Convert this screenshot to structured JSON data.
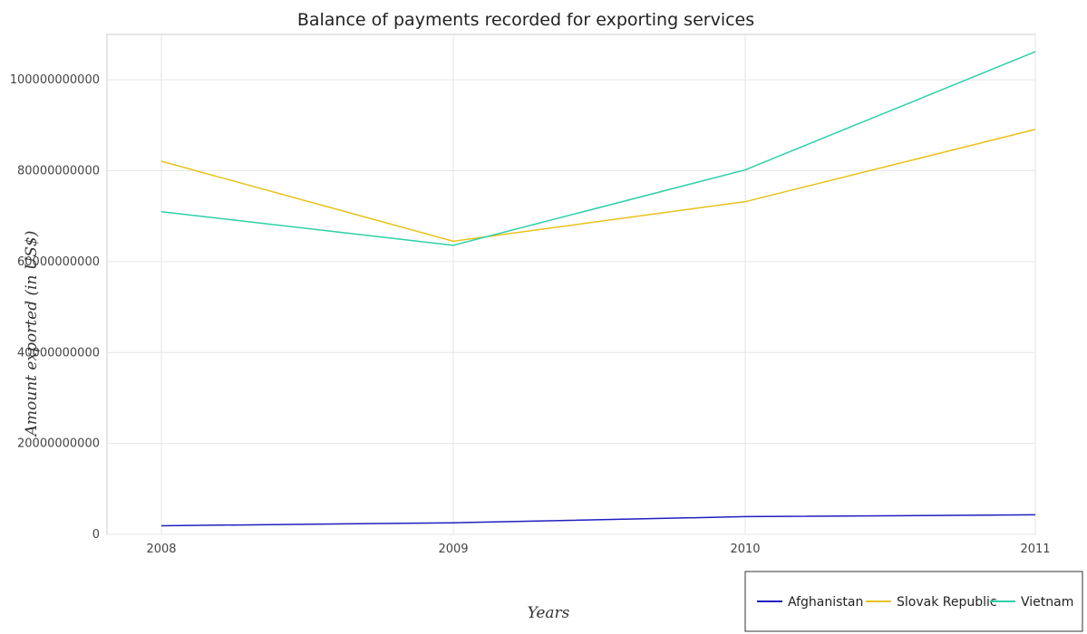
{
  "chart_data": {
    "type": "line",
    "title": "Balance of payments recorded for exporting services",
    "xlabel": "Years",
    "ylabel": "Amount exported (in US$)",
    "x": [
      "2008",
      "2009",
      "2010",
      "2011"
    ],
    "ylim": [
      0,
      110000000000
    ],
    "yticks": [
      0,
      20000000000,
      40000000000,
      60000000000,
      80000000000,
      100000000000
    ],
    "ytick_labels": [
      "0",
      "20000000000",
      "40000000000",
      "60000000000",
      "80000000000",
      "100000000000"
    ],
    "grid": true,
    "legend_position": "bottom-right",
    "series": [
      {
        "name": "Afghanistan",
        "color": "#1f1fbf",
        "values": [
          1900000000,
          2550000000,
          3900000000,
          4300000000
        ]
      },
      {
        "name": "Slovak Republic",
        "color": "#e6c21a",
        "values": [
          82100000000,
          64500000000,
          73200000000,
          89100000000
        ]
      },
      {
        "name": "Vietnam",
        "color": "#2ecfa8",
        "values": [
          71000000000,
          63600000000,
          80200000000,
          106200000000
        ]
      }
    ]
  }
}
